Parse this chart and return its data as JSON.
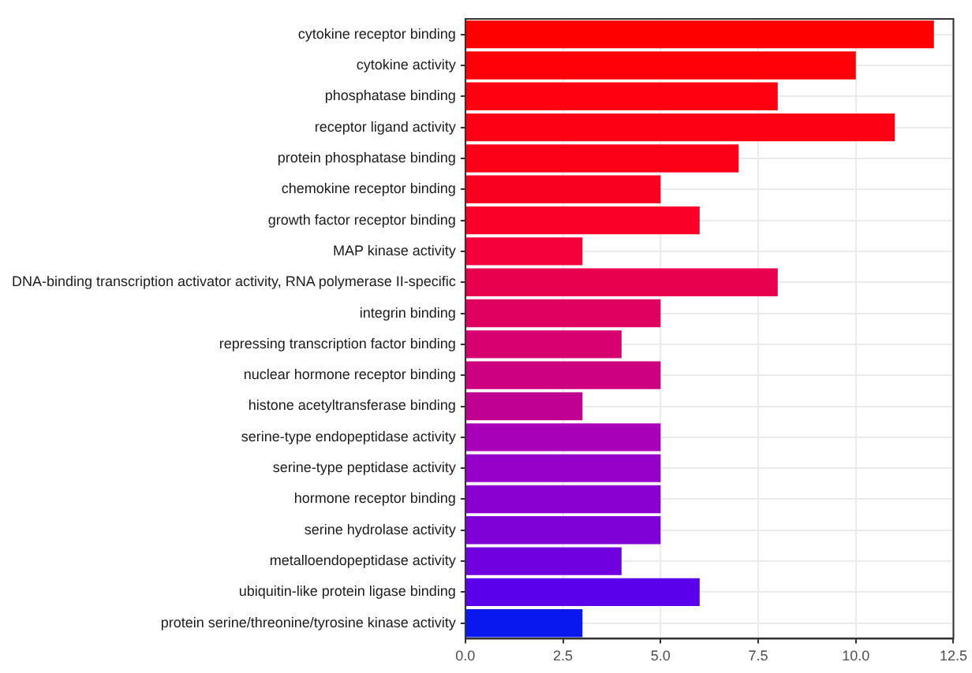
{
  "chart_data": {
    "type": "bar",
    "orientation": "horizontal",
    "categories": [
      "cytokine receptor binding",
      "cytokine activity",
      "phosphatase binding",
      "receptor ligand activity",
      "protein phosphatase binding",
      "chemokine receptor binding",
      "growth factor receptor binding",
      "MAP kinase activity",
      "DNA-binding transcription activator activity, RNA polymerase II-specific",
      "integrin binding",
      "repressing transcription factor binding",
      "nuclear hormone receptor binding",
      "histone acetyltransferase binding",
      "serine-type endopeptidase activity",
      "serine-type peptidase activity",
      "hormone receptor binding",
      "serine hydrolase activity",
      "metalloendopeptidase activity",
      "ubiquitin-like protein ligase binding",
      "protein serine/threonine/tyrosine kinase activity"
    ],
    "values": [
      12,
      10,
      8,
      11,
      7,
      5,
      6,
      3,
      8,
      5,
      4,
      5,
      3,
      5,
      5,
      5,
      5,
      4,
      6,
      3
    ],
    "colors": [
      "#ff0000",
      "#ff0008",
      "#fe0010",
      "#fd0014",
      "#fc0018",
      "#fa0020",
      "#f80028",
      "#f5003a",
      "#e8004f",
      "#e00060",
      "#d80070",
      "#cc0080",
      "#c00090",
      "#a800b8",
      "#9400c8",
      "#8a00d0",
      "#8000d8",
      "#7000e0",
      "#5a00ea",
      "#0a18f0"
    ],
    "xlim": [
      0,
      12.5
    ],
    "xticks": [
      {
        "value": 0,
        "label": "0.0"
      },
      {
        "value": 2.5,
        "label": "2.5"
      },
      {
        "value": 5,
        "label": "5.0"
      },
      {
        "value": 7.5,
        "label": "7.5"
      },
      {
        "value": 10,
        "label": "10.0"
      },
      {
        "value": 12.5,
        "label": "12.5"
      }
    ],
    "grid": true,
    "legend": false
  }
}
